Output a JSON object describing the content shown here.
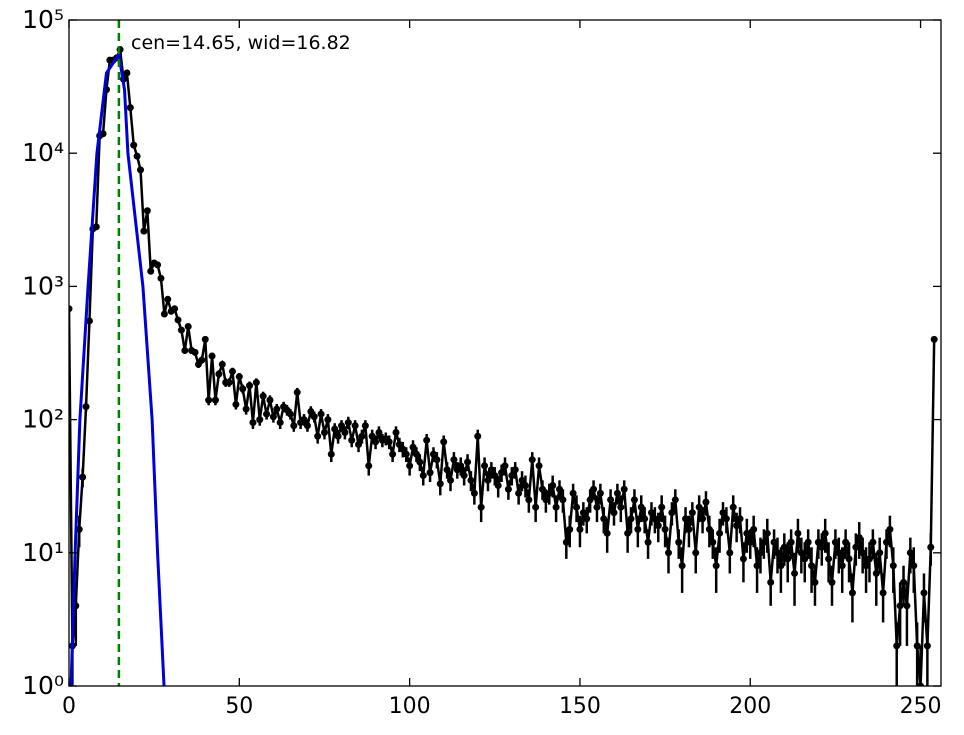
{
  "chart_data": {
    "type": "line",
    "annotation": "cen=14.65, wid=16.82",
    "vline": 14.65,
    "vline_color": "#008000",
    "log_y": true,
    "xlim": [
      0,
      256
    ],
    "ylim": [
      1,
      100000
    ],
    "xticks": [
      0,
      50,
      100,
      150,
      200,
      250
    ],
    "yticks": [
      {
        "value": 1,
        "label": "10⁰"
      },
      {
        "value": 10,
        "label": "10¹"
      },
      {
        "value": 100,
        "label": "10²"
      },
      {
        "value": 1000,
        "label": "10³"
      },
      {
        "value": 10000,
        "label": "10⁴"
      },
      {
        "value": 100000,
        "label": "10⁵"
      }
    ],
    "x": [
      0,
      1,
      2,
      3,
      4,
      5,
      6,
      7,
      8,
      9,
      10,
      11,
      12,
      13,
      14,
      15,
      16,
      17,
      18,
      19,
      20,
      21,
      22,
      23,
      24,
      25,
      26,
      27,
      28,
      29,
      30,
      31,
      32,
      33,
      34,
      35,
      36,
      37,
      38,
      39,
      40,
      41,
      42,
      43,
      44,
      45,
      46,
      47,
      48,
      49,
      50,
      51,
      52,
      53,
      54,
      55,
      56,
      57,
      58,
      59,
      60,
      61,
      62,
      63,
      64,
      65,
      66,
      67,
      68,
      69,
      70,
      71,
      72,
      73,
      74,
      75,
      76,
      77,
      78,
      79,
      80,
      81,
      82,
      83,
      84,
      85,
      86,
      87,
      88,
      89,
      90,
      91,
      92,
      93,
      94,
      95,
      96,
      97,
      98,
      99,
      100,
      101,
      102,
      103,
      104,
      105,
      106,
      107,
      108,
      109,
      110,
      111,
      112,
      113,
      114,
      115,
      116,
      117,
      118,
      119,
      120,
      121,
      122,
      123,
      124,
      125,
      126,
      127,
      128,
      129,
      130,
      131,
      132,
      133,
      134,
      135,
      136,
      137,
      138,
      139,
      140,
      141,
      142,
      143,
      144,
      145,
      146,
      147,
      148,
      149,
      150,
      151,
      152,
      153,
      154,
      155,
      156,
      157,
      158,
      159,
      160,
      161,
      162,
      163,
      164,
      165,
      166,
      167,
      168,
      169,
      170,
      171,
      172,
      173,
      174,
      175,
      176,
      177,
      178,
      179,
      180,
      181,
      182,
      183,
      184,
      185,
      186,
      187,
      188,
      189,
      190,
      191,
      192,
      193,
      194,
      195,
      196,
      197,
      198,
      199,
      200,
      201,
      202,
      203,
      204,
      205,
      206,
      207,
      208,
      209,
      210,
      211,
      212,
      213,
      214,
      215,
      216,
      217,
      218,
      219,
      220,
      221,
      222,
      223,
      224,
      225,
      226,
      227,
      228,
      229,
      230,
      231,
      232,
      233,
      234,
      235,
      236,
      237,
      238,
      239,
      240,
      241,
      242,
      243,
      244,
      245,
      246,
      247,
      248,
      249,
      250,
      251,
      252,
      253,
      254
    ],
    "series": [
      {
        "color": "#000000",
        "values": [
          680,
          2,
          4,
          15,
          37,
          125,
          550,
          2700,
          2800,
          13500,
          14000,
          30000,
          50000,
          50000,
          52000,
          60000,
          36000,
          40000,
          22000,
          11500,
          9500,
          7500,
          2600,
          3700,
          1300,
          1500,
          1450,
          1150,
          620,
          800,
          650,
          680,
          560,
          470,
          330,
          500,
          330,
          320,
          260,
          280,
          400,
          140,
          300,
          140,
          220,
          260,
          190,
          190,
          230,
          130,
          210,
          170,
          120,
          180,
          95,
          190,
          100,
          150,
          110,
          140,
          105,
          120,
          95,
          125,
          118,
          110,
          90,
          160,
          95,
          100,
          90,
          115,
          105,
          75,
          110,
          80,
          100,
          55,
          85,
          75,
          90,
          80,
          95,
          70,
          90,
          65,
          75,
          90,
          45,
          75,
          68,
          80,
          70,
          72,
          68,
          55,
          80,
          65,
          60,
          55,
          45,
          62,
          55,
          48,
          38,
          70,
          40,
          55,
          50,
          33,
          68,
          42,
          35,
          50,
          42,
          45,
          38,
          48,
          35,
          28,
          75,
          22,
          45,
          35,
          42,
          38,
          32,
          40,
          45,
          30,
          38,
          42,
          28,
          35,
          32,
          25,
          50,
          22,
          45,
          30,
          25,
          28,
          32,
          22,
          30,
          25,
          12,
          15,
          28,
          22,
          15,
          20,
          18,
          25,
          30,
          22,
          28,
          18,
          14,
          25,
          20,
          28,
          22,
          30,
          14,
          18,
          25,
          15,
          22,
          18,
          12,
          20,
          18,
          16,
          22,
          15,
          10,
          20,
          25,
          12,
          8,
          18,
          15,
          20,
          10,
          22,
          18,
          24,
          15,
          12,
          8,
          14,
          20,
          18,
          10,
          22,
          16,
          18,
          9,
          14,
          12,
          15,
          8,
          10,
          12,
          14,
          6,
          12,
          10,
          8,
          11,
          9,
          12,
          7,
          14,
          10,
          9,
          12,
          8,
          6,
          12,
          11,
          14,
          9,
          6,
          12,
          10,
          8,
          12,
          9,
          5,
          11,
          13,
          10,
          8,
          9,
          12,
          7,
          10,
          5,
          12,
          15,
          8,
          2,
          4,
          6,
          4,
          10,
          8,
          2,
          1,
          5,
          2,
          11,
          400
        ],
        "errors": [
          26,
          1,
          2,
          4,
          6,
          11,
          23,
          52,
          53,
          116,
          118,
          173,
          224,
          224,
          228,
          245,
          190,
          200,
          148,
          107,
          97,
          87,
          51,
          61,
          36,
          39,
          38,
          34,
          25,
          28,
          25,
          26,
          24,
          22,
          18,
          22,
          18,
          18,
          16,
          17,
          20,
          12,
          17,
          12,
          15,
          16,
          14,
          14,
          15,
          11,
          14,
          13,
          11,
          13,
          10,
          14,
          10,
          12,
          10,
          12,
          10,
          11,
          10,
          11,
          11,
          10,
          9,
          13,
          10,
          10,
          9,
          11,
          10,
          9,
          10,
          9,
          10,
          7,
          9,
          9,
          9,
          9,
          10,
          8,
          9,
          8,
          9,
          9,
          7,
          9,
          8,
          9,
          8,
          8,
          8,
          7,
          9,
          8,
          8,
          7,
          7,
          8,
          7,
          7,
          6,
          8,
          6,
          7,
          7,
          6,
          8,
          6,
          6,
          7,
          6,
          7,
          6,
          7,
          6,
          5,
          9,
          5,
          7,
          6,
          6,
          6,
          6,
          6,
          7,
          5,
          6,
          6,
          5,
          6,
          6,
          5,
          7,
          5,
          7,
          5,
          5,
          5,
          6,
          5,
          5,
          5,
          3,
          4,
          5,
          5,
          4,
          4,
          4,
          5,
          5,
          5,
          5,
          4,
          4,
          5,
          4,
          5,
          5,
          5,
          4,
          4,
          5,
          4,
          5,
          4,
          3,
          4,
          4,
          4,
          5,
          4,
          3,
          4,
          5,
          3,
          3,
          4,
          4,
          4,
          3,
          5,
          4,
          5,
          4,
          3,
          3,
          4,
          4,
          4,
          3,
          5,
          4,
          4,
          3,
          4,
          3,
          4,
          3,
          3,
          3,
          4,
          2,
          3,
          3,
          3,
          3,
          3,
          3,
          3,
          4,
          3,
          3,
          3,
          3,
          2,
          3,
          3,
          4,
          3,
          2,
          3,
          3,
          3,
          3,
          3,
          2,
          3,
          4,
          3,
          3,
          3,
          3,
          3,
          3,
          2,
          3,
          4,
          3,
          1,
          2,
          2,
          2,
          3,
          3,
          1,
          1,
          2,
          1,
          3,
          20
        ]
      },
      {
        "color": "#0000dd",
        "x": [
          0.6,
          1.8,
          3.2,
          5.6,
          8.2,
          11,
          14.65,
          16.3,
          17.3,
          21.7,
          24.4,
          26,
          27.9
        ],
        "values": [
          1,
          10,
          100,
          1000,
          10000,
          40000,
          55000,
          30000,
          10000,
          1000,
          100,
          10,
          1
        ]
      }
    ]
  }
}
